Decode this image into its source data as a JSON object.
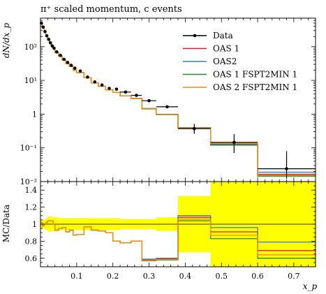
{
  "chart_data": [
    {
      "type": "line",
      "title": "π⁺ scaled momentum, c events",
      "ylabel": "dN/dx_p",
      "xlabel": "x_p",
      "yscale": "log",
      "xlim": [
        0.0,
        0.76
      ],
      "ylim": [
        0.01,
        700
      ],
      "y_tick_labels": [
        "10⁻²",
        "10⁻¹",
        "1",
        "10¹",
        "10²"
      ],
      "legend_position": "top-right",
      "legend": [
        "Data",
        "OAS 1",
        "OAS2",
        "OAS 1 FSPT2MIN 1",
        "OAS 2 FSPT2MIN 1"
      ],
      "colors": {
        "Data": "#000000",
        "OAS 1": "#e41a1c",
        "OAS2": "#377eb8",
        "OAS 1 FSPT2MIN 1": "#228b22",
        "OAS 2 FSPT2MIN 1": "#ff8c00"
      },
      "edges": [
        0.0,
        0.005,
        0.01,
        0.015,
        0.02,
        0.025,
        0.03,
        0.035,
        0.04,
        0.05,
        0.06,
        0.07,
        0.08,
        0.09,
        0.1,
        0.12,
        0.14,
        0.16,
        0.18,
        0.2,
        0.22,
        0.25,
        0.28,
        0.32,
        0.38,
        0.47,
        0.6,
        0.76
      ],
      "data": {
        "x": [
          0.0025,
          0.0075,
          0.0125,
          0.0175,
          0.0225,
          0.0275,
          0.0325,
          0.0375,
          0.045,
          0.055,
          0.065,
          0.075,
          0.085,
          0.095,
          0.11,
          0.13,
          0.15,
          0.17,
          0.19,
          0.21,
          0.235,
          0.265,
          0.3,
          0.35,
          0.425,
          0.535,
          0.68
        ],
        "y": [
          500,
          380,
          280,
          210,
          165,
          130,
          105,
          90,
          70,
          55,
          42,
          34,
          28,
          23,
          19,
          12.5,
          9.0,
          7.3,
          5.8,
          5.5,
          4.5,
          3.6,
          2.5,
          1.65,
          0.37,
          0.145,
          0.024
        ],
        "yerr_low": [
          0,
          0,
          0,
          0,
          0,
          0,
          0,
          0,
          0,
          0,
          0,
          0,
          0,
          0,
          0,
          0,
          0,
          0,
          0,
          0,
          0,
          0,
          0,
          0,
          0.11,
          0.075,
          0.012
        ],
        "yerr_high": [
          0,
          0,
          0,
          0,
          0,
          0,
          0,
          0,
          0,
          0,
          0,
          0,
          0,
          0,
          0,
          0,
          0,
          0,
          0,
          0,
          0,
          0,
          0,
          0,
          0.14,
          0.11,
          0.056
        ]
      },
      "series": [
        {
          "name": "OAS 1",
          "values": [
            520,
            370,
            280,
            215,
            170,
            135,
            110,
            90,
            65,
            52,
            40,
            31,
            26,
            20,
            17,
            12.1,
            8.4,
            6.7,
            5.2,
            4.4,
            3.5,
            2.9,
            1.45,
            0.98,
            0.39,
            0.132,
            0.0165
          ]
        },
        {
          "name": "OAS2",
          "values": [
            520,
            370,
            280,
            215,
            170,
            135,
            110,
            90,
            65,
            52,
            40,
            31,
            26,
            20,
            17,
            12.1,
            8.4,
            6.7,
            5.2,
            4.4,
            3.5,
            2.9,
            1.47,
            0.99,
            0.4,
            0.125,
            0.019
          ]
        },
        {
          "name": "OAS 1 FSPT2MIN 1",
          "values": [
            520,
            370,
            280,
            215,
            170,
            135,
            110,
            90,
            65,
            52,
            40,
            31,
            26,
            20,
            17,
            12.1,
            8.4,
            6.7,
            5.2,
            4.4,
            3.5,
            2.9,
            1.42,
            0.96,
            0.385,
            0.12,
            0.0145
          ]
        },
        {
          "name": "OAS 2 FSPT2MIN 1",
          "values": [
            520,
            370,
            280,
            215,
            170,
            135,
            110,
            90,
            65,
            52,
            40,
            31,
            26,
            20,
            17,
            12.1,
            8.4,
            6.7,
            5.2,
            4.4,
            3.5,
            2.9,
            1.43,
            0.965,
            0.39,
            0.135,
            0.0155
          ]
        }
      ]
    },
    {
      "type": "line",
      "ylabel": "MC/Data",
      "xlabel": "x_p",
      "xlim": [
        0.0,
        0.76
      ],
      "ylim": [
        0.5,
        1.5
      ],
      "x_tick_labels": [
        "0.1",
        "0.2",
        "0.3",
        "0.4",
        "0.5",
        "0.6",
        "0.7"
      ],
      "y_tick_labels": [
        "0.6",
        "0.8",
        "1",
        "1.2",
        "1.4"
      ],
      "band_color": "#ffff00",
      "band_halfwidth": [
        0.05,
        0.05,
        0.06,
        0.07,
        0.09,
        0.09,
        0.08,
        0.08,
        0.08,
        0.07,
        0.07,
        0.07,
        0.07,
        0.07,
        0.07,
        0.07,
        0.07,
        0.07,
        0.07,
        0.07,
        0.06,
        0.06,
        0.06,
        0.08,
        0.33,
        0.75,
        2.3
      ],
      "series": [
        {
          "name": "OAS 1",
          "values": [
            1.02,
            0.98,
            1.0,
            1.02,
            1.04,
            1.04,
            1.04,
            1.0,
            0.93,
            0.95,
            0.96,
            0.91,
            0.93,
            0.87,
            0.88,
            0.97,
            0.93,
            0.92,
            0.9,
            0.8,
            0.78,
            0.8,
            0.58,
            0.59,
            1.08,
            0.91,
            0.69
          ]
        },
        {
          "name": "OAS2",
          "values": [
            1.02,
            0.98,
            1.0,
            1.02,
            1.04,
            1.04,
            1.04,
            1.0,
            0.93,
            0.95,
            0.96,
            0.91,
            0.93,
            0.87,
            0.88,
            0.97,
            0.93,
            0.92,
            0.9,
            0.8,
            0.78,
            0.8,
            0.59,
            0.6,
            1.1,
            0.96,
            0.79
          ]
        },
        {
          "name": "OAS 1 FSPT2MIN 1",
          "values": [
            1.02,
            0.98,
            1.0,
            1.02,
            1.04,
            1.04,
            1.04,
            1.0,
            0.93,
            0.95,
            0.96,
            0.91,
            0.93,
            0.87,
            0.88,
            0.97,
            0.93,
            0.92,
            0.9,
            0.8,
            0.78,
            0.8,
            0.57,
            0.58,
            1.04,
            0.83,
            0.6
          ]
        },
        {
          "name": "OAS 2 FSPT2MIN 1",
          "values": [
            1.02,
            0.98,
            1.0,
            1.02,
            1.04,
            1.04,
            1.04,
            1.0,
            0.93,
            0.95,
            0.96,
            0.91,
            0.93,
            0.87,
            0.88,
            0.97,
            0.93,
            0.92,
            0.9,
            0.8,
            0.78,
            0.8,
            0.575,
            0.585,
            1.06,
            0.87,
            0.64
          ]
        }
      ]
    }
  ]
}
